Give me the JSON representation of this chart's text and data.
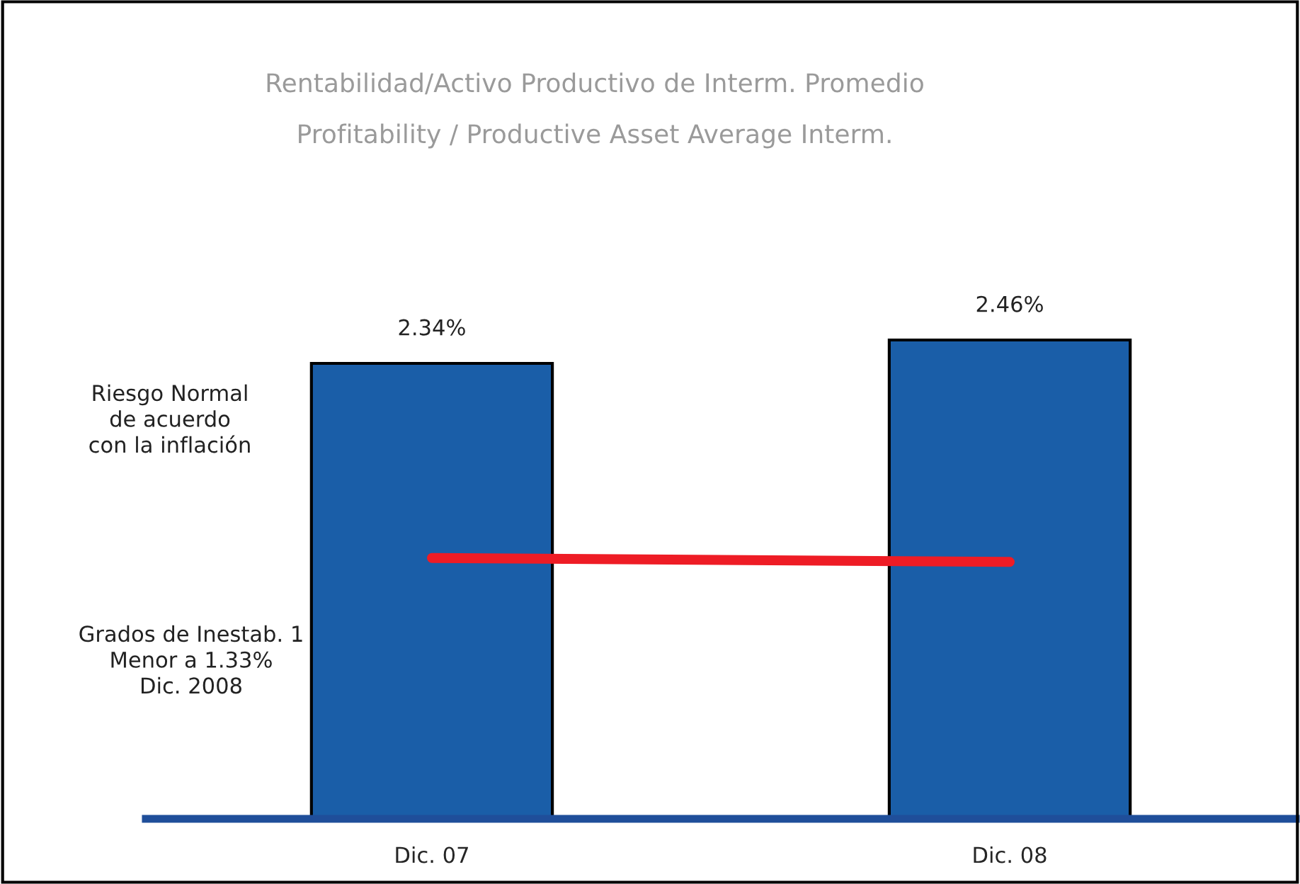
{
  "chart_data": {
    "type": "bar",
    "title": "Rentabilidad/Activo Productivo de Interm. Promedio",
    "subtitle": "Profitability / Productive Asset Average Interm.",
    "categories": [
      "Dic. 07",
      "Dic. 08"
    ],
    "series": [
      {
        "color": "#1a5ea8",
        "values": [
          2.34,
          2.46
        ],
        "value_labels": [
          "2.34%",
          "2.46%"
        ]
      },
      {
        "type": "line",
        "color": "#ee1c25",
        "values": [
          1.34,
          1.32
        ]
      }
    ],
    "annotations": [
      "Riesgo Normal\nde acuerdo\ncon la inflación",
      "Grados de Inestab. 1\nMenor a 1.33%\nDic. 2008"
    ],
    "grid": false,
    "legend": false
  }
}
